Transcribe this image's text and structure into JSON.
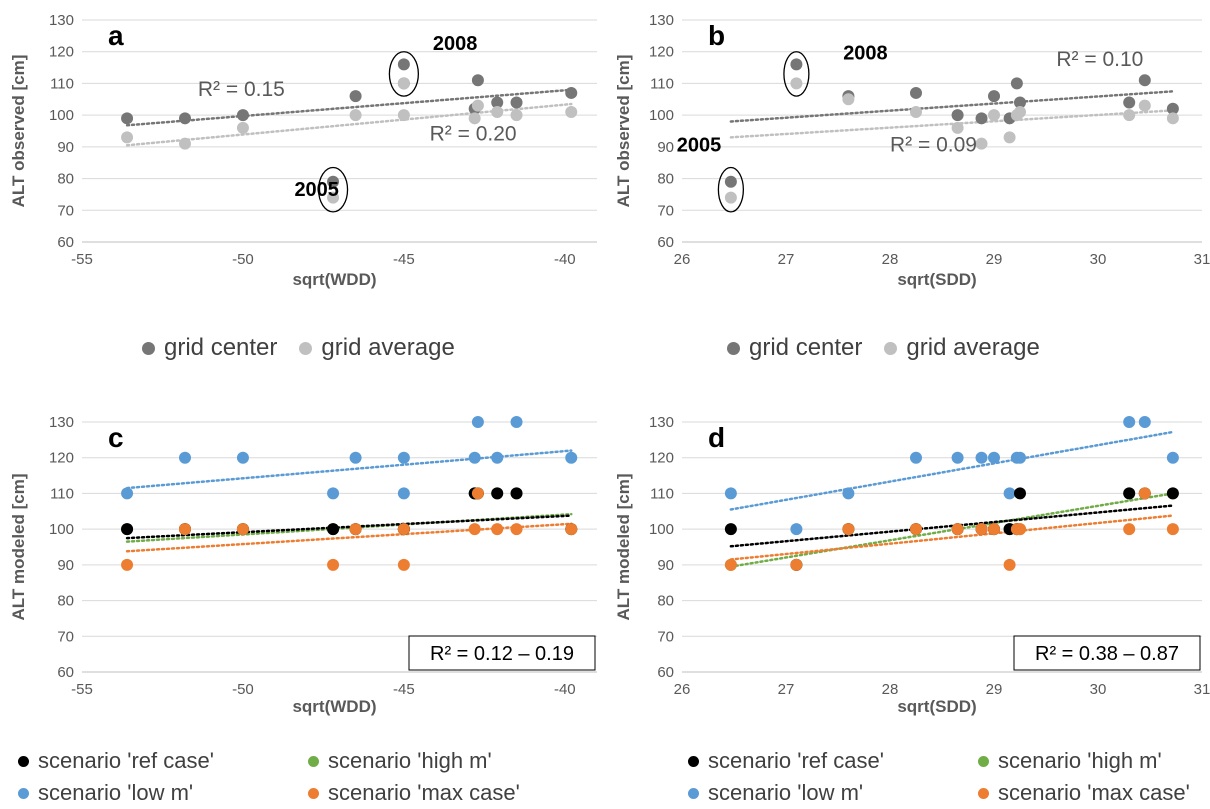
{
  "colors": {
    "grid_center": "#767676",
    "grid_average": "#c0c0c0",
    "ref_case": "#000000",
    "high_m": "#70ad47",
    "low_m": "#5b9bd5",
    "max_case": "#ed7d31"
  },
  "legend_top_left": [
    {
      "label": "grid center",
      "color": "#767676"
    },
    {
      "label": "grid average",
      "color": "#c0c0c0"
    }
  ],
  "legend_top_right": [
    {
      "label": "grid center",
      "color": "#767676"
    },
    {
      "label": "grid average",
      "color": "#c0c0c0"
    }
  ],
  "legend_bottom_left": [
    {
      "label": "scenario 'ref case'",
      "color": "#000000"
    },
    {
      "label": "scenario 'high m'",
      "color": "#70ad47"
    },
    {
      "label": "scenario 'low m'",
      "color": "#5b9bd5"
    },
    {
      "label": "scenario 'max case'",
      "color": "#ed7d31"
    }
  ],
  "legend_bottom_right": [
    {
      "label": "scenario 'ref case'",
      "color": "#000000"
    },
    {
      "label": "scenario 'high m'",
      "color": "#70ad47"
    },
    {
      "label": "scenario 'low m'",
      "color": "#5b9bd5"
    },
    {
      "label": "scenario 'max case'",
      "color": "#ed7d31"
    }
  ],
  "chart_data": [
    {
      "id": "a",
      "type": "scatter",
      "panel_letter": "a",
      "xlabel": "sqrt(WDD)",
      "ylabel": "ALT observed [cm]",
      "xlim": [
        -55,
        -39
      ],
      "ylim": [
        60,
        130
      ],
      "xticks": [
        -55,
        -50,
        -45,
        -40
      ],
      "yticks": [
        60,
        70,
        80,
        90,
        100,
        110,
        120,
        130
      ],
      "grid": true,
      "legend": "bottom",
      "series": [
        {
          "name": "grid center",
          "color": "#767676",
          "x": [
            -53.6,
            -51.8,
            -50.0,
            -47.2,
            -46.5,
            -45.0,
            -45.0,
            -42.8,
            -42.7,
            -42.1,
            -41.5,
            -39.8
          ],
          "y": [
            99,
            99,
            100,
            79,
            106,
            116,
            110,
            102,
            111,
            104,
            104,
            107
          ],
          "trend": [
            [
              -53.6,
              96.8
            ],
            [
              -39.8,
              108.0
            ]
          ]
        },
        {
          "name": "grid average",
          "color": "#c0c0c0",
          "x": [
            -53.6,
            -51.8,
            -50.0,
            -47.2,
            -46.5,
            -45.0,
            -45.0,
            -42.8,
            -42.7,
            -42.1,
            -41.5,
            -39.8
          ],
          "y": [
            93,
            91,
            96,
            74,
            100,
            110,
            100,
            99,
            103,
            101,
            100,
            101
          ],
          "trend": [
            [
              -53.6,
              90.5
            ],
            [
              -39.8,
              103.5
            ]
          ]
        }
      ],
      "annotations": [
        {
          "text": "2008",
          "x": -44.1,
          "y": 120.5,
          "type": "year"
        },
        {
          "text": "2005",
          "x": -48.4,
          "y": 74.5,
          "type": "year"
        },
        {
          "text": "R² = 0.15",
          "x": -51.4,
          "y": 106,
          "type": "r2"
        },
        {
          "text": "R² = 0.20",
          "x": -44.2,
          "y": 92,
          "type": "r2"
        }
      ],
      "ellipses": [
        {
          "cx": -45.0,
          "cy": 113,
          "rx": 0.45,
          "ry": 7
        },
        {
          "cx": -47.2,
          "cy": 76.5,
          "rx": 0.45,
          "ry": 7
        }
      ]
    },
    {
      "id": "b",
      "type": "scatter",
      "panel_letter": "b",
      "xlabel": "sqrt(SDD)",
      "ylabel": "ALT observed [cm]",
      "xlim": [
        26,
        31
      ],
      "ylim": [
        60,
        130
      ],
      "xticks": [
        26,
        27,
        28,
        29,
        30,
        31
      ],
      "yticks": [
        60,
        70,
        80,
        90,
        100,
        110,
        120,
        130
      ],
      "grid": true,
      "legend": "bottom",
      "series": [
        {
          "name": "grid center",
          "color": "#767676",
          "x": [
            26.47,
            27.1,
            27.6,
            28.25,
            28.65,
            28.88,
            29.0,
            29.15,
            29.22,
            29.25,
            30.3,
            30.45,
            30.72
          ],
          "y": [
            79,
            116,
            106,
            107,
            100,
            99,
            106,
            99,
            110,
            104,
            104,
            111,
            102
          ],
          "trend": [
            [
              26.47,
              98.0
            ],
            [
              30.72,
              107.5
            ]
          ]
        },
        {
          "name": "grid average",
          "color": "#c0c0c0",
          "x": [
            26.47,
            27.1,
            27.6,
            28.25,
            28.65,
            28.88,
            29.0,
            29.15,
            29.22,
            29.25,
            30.3,
            30.45,
            30.72
          ],
          "y": [
            74,
            110,
            105,
            101,
            96,
            91,
            100,
            93,
            100,
            101,
            100,
            103,
            99
          ],
          "trend": [
            [
              26.47,
              93.0
            ],
            [
              30.72,
              101.5
            ]
          ]
        }
      ],
      "annotations": [
        {
          "text": "2008",
          "x": 27.55,
          "y": 117.5,
          "type": "year"
        },
        {
          "text": "2005",
          "x": 25.95,
          "y": 88.5,
          "type": "year"
        },
        {
          "text": "R² = 0.10",
          "x": 29.6,
          "y": 115.5,
          "type": "r2"
        },
        {
          "text": "R² = 0.09",
          "x": 28.0,
          "y": 88.5,
          "type": "r2"
        }
      ],
      "ellipses": [
        {
          "cx": 27.1,
          "cy": 113,
          "rx": 0.12,
          "ry": 7
        },
        {
          "cx": 26.47,
          "cy": 76.5,
          "rx": 0.12,
          "ry": 7
        }
      ]
    },
    {
      "id": "c",
      "type": "scatter",
      "panel_letter": "c",
      "xlabel": "sqrt(WDD)",
      "ylabel": "ALT modeled [cm]",
      "xlim": [
        -55,
        -39
      ],
      "ylim": [
        60,
        130
      ],
      "xticks": [
        -55,
        -50,
        -45,
        -40
      ],
      "yticks": [
        60,
        70,
        80,
        90,
        100,
        110,
        120,
        130
      ],
      "grid": true,
      "legend": "bottom",
      "r2_box": "R² = 0.12 – 0.19",
      "series": [
        {
          "name": "scenario 'low m'",
          "color": "#5b9bd5",
          "x": [
            -53.6,
            -51.8,
            -50.0,
            -47.2,
            -46.5,
            -45.0,
            -45.0,
            -42.8,
            -42.7,
            -42.1,
            -41.5,
            -39.8
          ],
          "y": [
            110,
            120,
            120,
            110,
            120,
            110,
            120,
            120,
            130,
            120,
            130,
            120
          ],
          "trend": [
            [
              -53.6,
              111.5
            ],
            [
              -39.8,
              122.0
            ]
          ]
        },
        {
          "name": "scenario 'high m'",
          "color": "#70ad47",
          "x": [
            -53.6,
            -51.8,
            -50.0,
            -47.2,
            -46.5,
            -45.0,
            -45.0,
            -42.8,
            -42.7,
            -42.1,
            -41.5,
            -39.8
          ],
          "y": [
            100,
            100,
            100,
            100,
            100,
            100,
            100,
            110,
            110,
            110,
            110,
            100
          ],
          "trend": [
            [
              -53.6,
              96.5
            ],
            [
              -39.8,
              104.2
            ]
          ]
        },
        {
          "name": "scenario 'ref case'",
          "color": "#000000",
          "x": [
            -53.6,
            -51.8,
            -50.0,
            -47.2,
            -46.5,
            -45.0,
            -45.0,
            -42.8,
            -42.7,
            -42.1,
            -41.5,
            -39.8
          ],
          "y": [
            100,
            100,
            100,
            100,
            100,
            100,
            100,
            110,
            110,
            110,
            110,
            100
          ],
          "trend": [
            [
              -53.6,
              97.5
            ],
            [
              -39.8,
              103.8
            ]
          ]
        },
        {
          "name": "scenario 'max case'",
          "color": "#ed7d31",
          "x": [
            -53.6,
            -51.8,
            -50.0,
            -47.2,
            -46.5,
            -45.0,
            -45.0,
            -42.8,
            -42.7,
            -42.1,
            -41.5,
            -39.8
          ],
          "y": [
            90,
            100,
            100,
            90,
            100,
            90,
            100,
            100,
            110,
            100,
            100,
            100
          ],
          "trend": [
            [
              -53.6,
              93.8
            ],
            [
              -39.8,
              101.5
            ]
          ]
        }
      ]
    },
    {
      "id": "d",
      "type": "scatter",
      "panel_letter": "d",
      "xlabel": "sqrt(SDD)",
      "ylabel": "ALT modeled [cm]",
      "xlim": [
        26,
        31
      ],
      "ylim": [
        60,
        130
      ],
      "xticks": [
        26,
        27,
        28,
        29,
        30,
        31
      ],
      "yticks": [
        60,
        70,
        80,
        90,
        100,
        110,
        120,
        130
      ],
      "grid": true,
      "legend": "bottom",
      "r2_box": "R² = 0.38 – 0.87",
      "series": [
        {
          "name": "scenario 'low m'",
          "color": "#5b9bd5",
          "x": [
            26.47,
            27.1,
            27.6,
            28.25,
            28.65,
            28.88,
            29.0,
            29.15,
            29.22,
            29.25,
            30.3,
            30.45,
            30.72
          ],
          "y": [
            110,
            100,
            110,
            120,
            120,
            120,
            120,
            110,
            120,
            120,
            130,
            130,
            120
          ],
          "trend": [
            [
              26.47,
              105.5
            ],
            [
              30.72,
              127.2
            ]
          ]
        },
        {
          "name": "scenario 'high m'",
          "color": "#70ad47",
          "x": [
            26.47,
            27.1,
            27.6,
            28.25,
            28.65,
            28.88,
            29.0,
            29.15,
            29.22,
            29.25,
            30.3,
            30.45,
            30.72
          ],
          "y": [
            90,
            90,
            100,
            100,
            100,
            100,
            100,
            100,
            100,
            100,
            110,
            110,
            110
          ],
          "trend": [
            [
              26.47,
              89.5
            ],
            [
              30.72,
              110.0
            ]
          ]
        },
        {
          "name": "scenario 'ref case'",
          "color": "#000000",
          "x": [
            26.47,
            27.1,
            27.6,
            28.25,
            28.65,
            28.88,
            29.0,
            29.15,
            29.22,
            29.25,
            30.3,
            30.45,
            30.72
          ],
          "y": [
            100,
            90,
            100,
            100,
            100,
            100,
            100,
            100,
            100,
            110,
            110,
            110,
            110
          ],
          "trend": [
            [
              26.47,
              95.2
            ],
            [
              30.72,
              106.6
            ]
          ]
        },
        {
          "name": "scenario 'max case'",
          "color": "#ed7d31",
          "x": [
            26.47,
            27.1,
            27.6,
            28.25,
            28.65,
            28.88,
            29.0,
            29.15,
            29.22,
            29.25,
            30.3,
            30.45,
            30.72
          ],
          "y": [
            90,
            90,
            100,
            100,
            100,
            100,
            100,
            90,
            100,
            100,
            100,
            110,
            100
          ],
          "trend": [
            [
              26.47,
              91.5
            ],
            [
              30.72,
              103.8
            ]
          ]
        }
      ]
    }
  ]
}
